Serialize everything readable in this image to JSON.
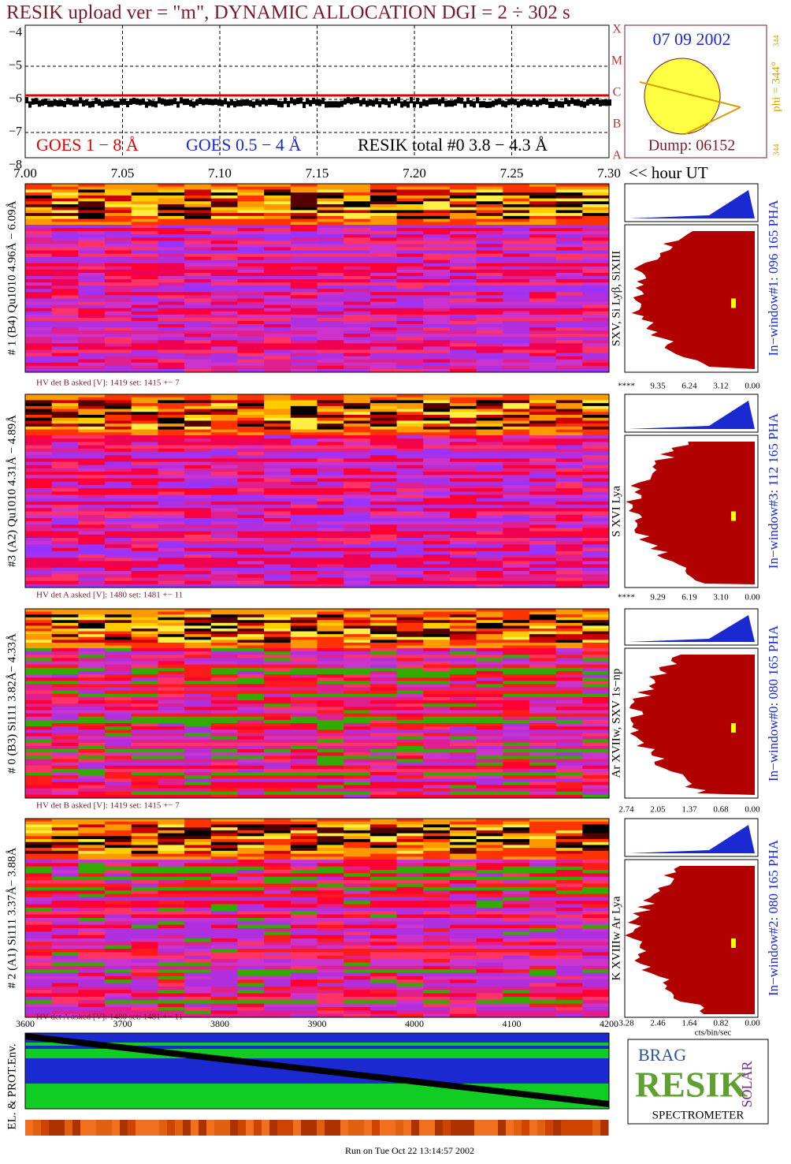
{
  "title": "RESIK upload ver = \"m\", DYNAMIC ALLOCATION  DGI =   2 ÷ 302 s",
  "top": {
    "yticks": [
      "−4",
      "−5",
      "−6",
      "−7",
      "−8"
    ],
    "xticks": [
      "7.00",
      "7.05",
      "7.10",
      "7.15",
      "7.20",
      "7.25",
      "7.30"
    ],
    "xunit": "<< hour UT",
    "legend": [
      "GOES 1 − 8 Å",
      "GOES 0.5 − 4 Å",
      "RESIK total #0  3.8 − 4.3 Å"
    ],
    "classes": [
      "X",
      "M",
      "C",
      "B",
      "A"
    ],
    "date": "07 09 2002",
    "phi": "phi = 344°",
    "phi_top": "344",
    "phi_bottom": "344",
    "dump": "Dump: 06152"
  },
  "panels": [
    {
      "label": "# 1 (B4) Qu1010 4.96Å − 6.09Å",
      "hv": "HV det B asked [V]:  1419 set:  1415 +−    7",
      "line": "SXV, Si Lyβ, SiXIII",
      "window": "In−window#1:  096 165 PHA",
      "scale": [
        "****",
        "9.35",
        "6.24",
        "3.12",
        "0.00"
      ]
    },
    {
      "label": "#3 (A2) Qu1010  4.31Å − 4.89Å",
      "hv": "HV det A asked [V]:  1480 set:  1481 +−   11",
      "line": "S XVI Lya",
      "window": "In−window#3:  112 165 PHA",
      "scale": [
        "****",
        "9.29",
        "6.19",
        "3.10",
        "0.00"
      ]
    },
    {
      "label": "# 0 (B3) Si111  3.82Å− 4.33Å",
      "hv": "HV det B asked [V]:  1419 set:  1415 +−    7",
      "line": "Ar XVIIw,  SXV 1s−np",
      "window": "In−window#0:  080 165 PHA",
      "scale": [
        "2.74",
        "2.05",
        "1.37",
        "0.68",
        "0.00"
      ]
    },
    {
      "label": "# 2 (A1) Si111  3.37Å− 3.88Å",
      "hv": "HV det A asked [V]:  1480 set:  1481 +−   11",
      "line": "K XVIIIw  Ar Lya",
      "window": "In−window#2:  080 165 PHA",
      "scale": [
        "3.28",
        "2.46",
        "1.64",
        "0.82",
        "0.00"
      ]
    }
  ],
  "unit": "cts/bin/sec",
  "bottom": {
    "xticks": [
      "3600",
      "3700",
      "3800",
      "3900",
      "4000",
      "4100",
      "4200"
    ],
    "ylabel": "EL. & PROT.Env."
  },
  "logo": {
    "top": "BRAG",
    "main": "RESIK",
    "side": "SOLAR",
    "bottom": "SPECTROMETER"
  },
  "footer": "Run on Tue Oct 22 13:14:57 2002"
}
